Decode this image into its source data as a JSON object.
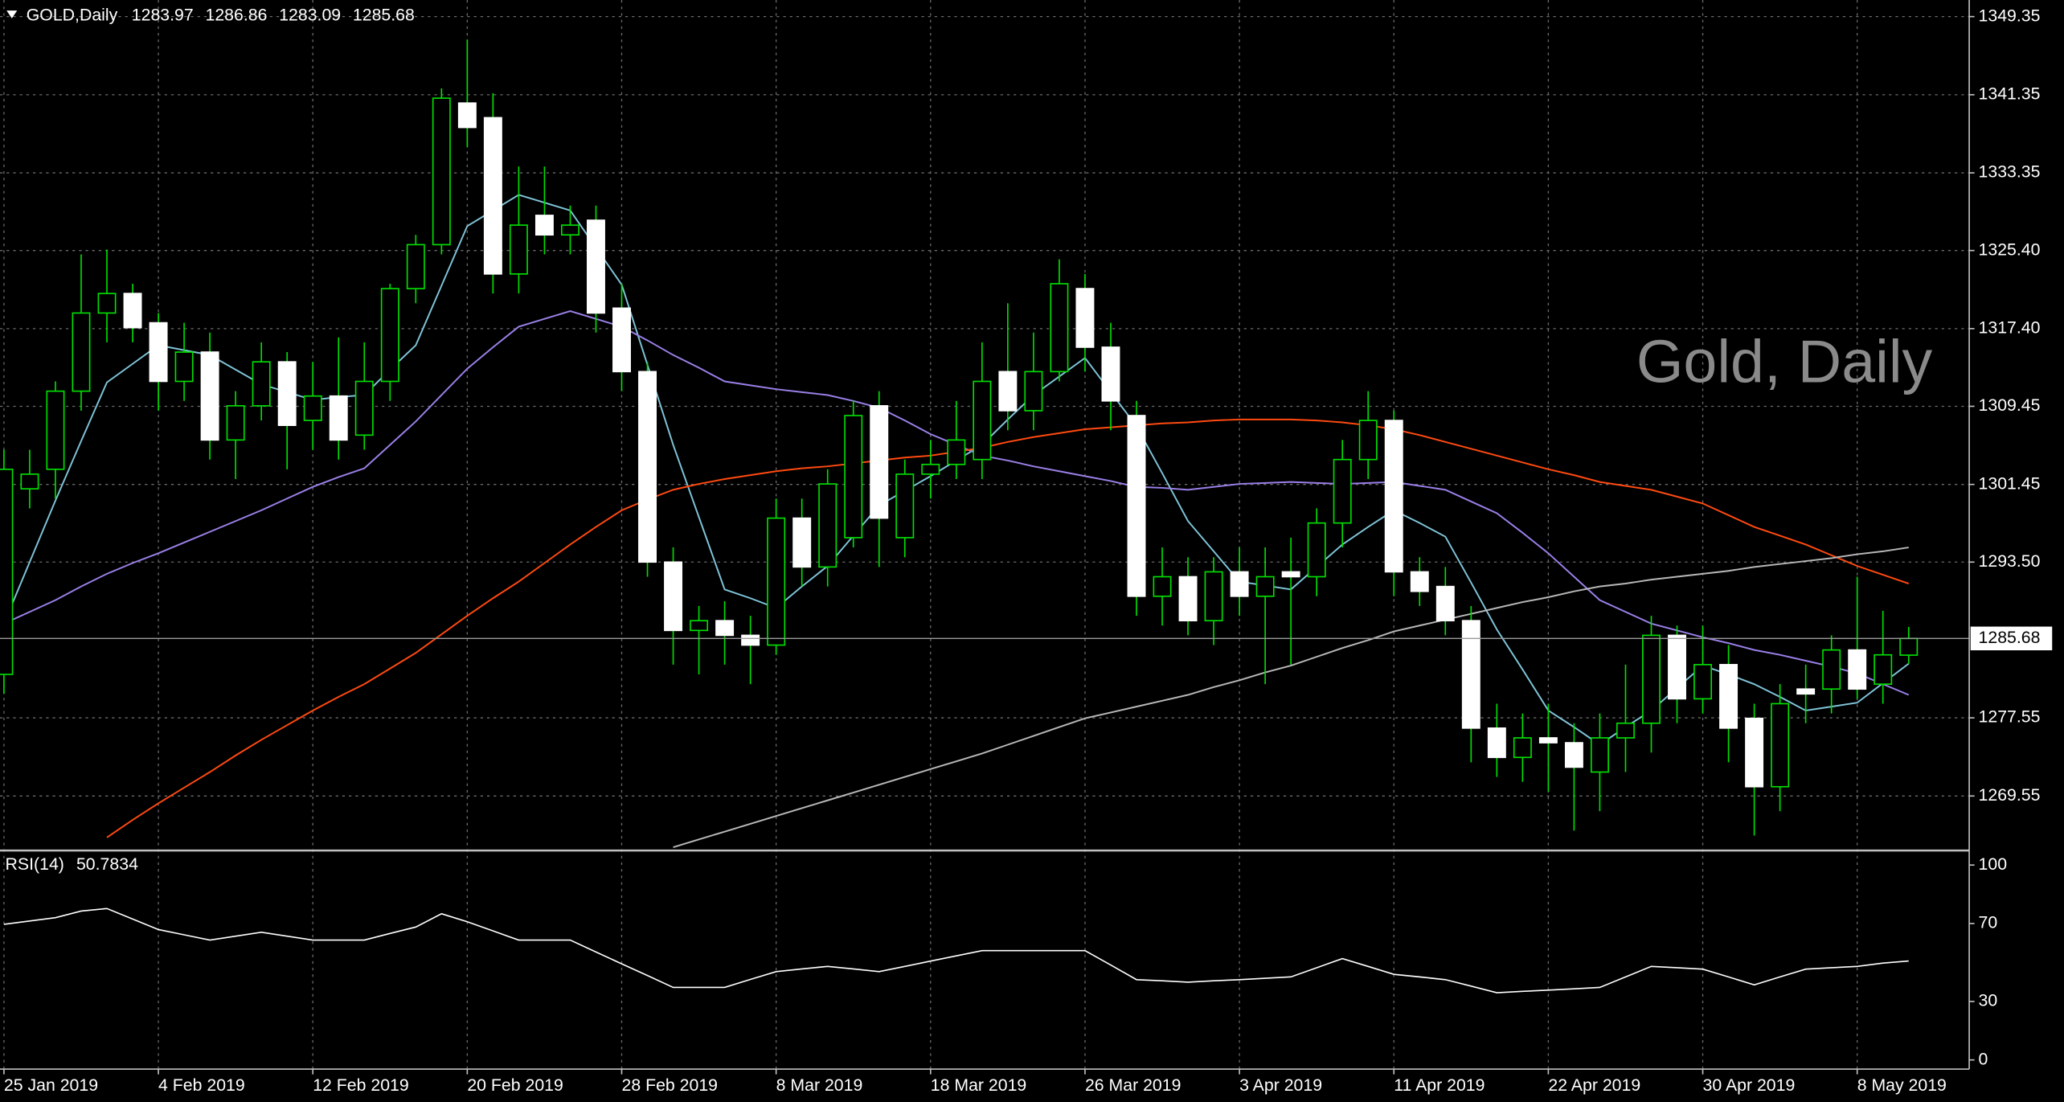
{
  "chart_data": [
    {
      "type": "candlestick",
      "title": "GOLD,Daily",
      "annotation": "Gold, Daily",
      "categories": [
        "25 Jan 2019",
        null,
        null,
        null,
        null,
        null,
        "4 Feb 2019",
        null,
        null,
        null,
        null,
        null,
        "12 Feb 2019",
        null,
        null,
        null,
        null,
        null,
        "20 Feb 2019",
        null,
        null,
        null,
        null,
        null,
        "28 Feb 2019",
        null,
        null,
        null,
        null,
        null,
        "8 Mar 2019",
        null,
        null,
        null,
        null,
        null,
        "18 Mar 2019",
        null,
        null,
        null,
        null,
        null,
        "26 Mar 2019",
        null,
        null,
        null,
        null,
        null,
        "3 Apr 2019",
        null,
        null,
        null,
        null,
        null,
        "11 Apr 2019",
        null,
        null,
        null,
        null,
        null,
        "22 Apr 2019",
        null,
        null,
        null,
        null,
        null,
        "30 Apr 2019",
        null,
        null,
        null,
        null,
        null,
        "8 May 2019",
        null,
        null
      ],
      "open": [
        1282,
        1301,
        1303,
        1311,
        1319,
        1321,
        1318,
        1312,
        1315,
        1306,
        1309.5,
        1314,
        1308,
        1310.5,
        1306.5,
        1312,
        1321.5,
        1326,
        1340.5,
        1339,
        1323,
        1329,
        1327,
        1328.5,
        1319.5,
        1313,
        1293.5,
        1286.5,
        1287.5,
        1286,
        1285,
        1298,
        1293,
        1296,
        1309.5,
        1296,
        1302.5,
        1303.5,
        1304,
        1313,
        1309,
        1313,
        1321.5,
        1315.5,
        1308.5,
        1290,
        1292,
        1287.5,
        1292.5,
        1290,
        1292.5,
        1292,
        1297.5,
        1304,
        1308,
        1292.5,
        1291,
        1287.5,
        1276.5,
        1273.5,
        1275.5,
        1275,
        1272,
        1275.5,
        1277,
        1286,
        1279.5,
        1283,
        1277.5,
        1270.5,
        1280.5,
        1280.5,
        1284.5,
        1281,
        1283.97
      ],
      "high": [
        1305,
        1305,
        1312,
        1325,
        1325.5,
        1322,
        1319,
        1318,
        1317,
        1311,
        1316,
        1315,
        1314,
        1316.5,
        1316,
        1322,
        1327,
        1342,
        1347,
        1341.5,
        1334,
        1334,
        1330,
        1330,
        1322,
        1314,
        1295,
        1289,
        1289.5,
        1288,
        1300,
        1300,
        1303,
        1310,
        1311,
        1304,
        1306,
        1310,
        1316,
        1320,
        1317,
        1324.5,
        1323,
        1318,
        1310,
        1295,
        1294,
        1294,
        1295,
        1295,
        1296,
        1299,
        1306,
        1311,
        1309,
        1294,
        1293,
        1289,
        1279,
        1278,
        1279,
        1277,
        1278,
        1283,
        1288,
        1287,
        1287,
        1285,
        1279,
        1281,
        1283,
        1286,
        1292,
        1288.5,
        1286.86
      ],
      "low": [
        1280,
        1299,
        1300,
        1309,
        1316,
        1316,
        1309,
        1310,
        1304,
        1302,
        1308,
        1303,
        1305,
        1304,
        1305,
        1310,
        1320,
        1325,
        1336,
        1321,
        1321,
        1325,
        1325,
        1317,
        1311,
        1292,
        1283,
        1282,
        1283,
        1281,
        1284,
        1291,
        1291,
        1295,
        1293,
        1294,
        1300,
        1302,
        1302,
        1307,
        1307,
        1312,
        1313,
        1307,
        1288,
        1287,
        1286,
        1285,
        1288,
        1281,
        1283,
        1290,
        1295,
        1302,
        1290,
        1289,
        1286,
        1273,
        1271.5,
        1271,
        1270,
        1266,
        1268,
        1272,
        1274,
        1277,
        1278,
        1273,
        1265.5,
        1268,
        1277,
        1278,
        1279.5,
        1279,
        1283.09
      ],
      "close": [
        1303,
        1302.5,
        1311,
        1319,
        1321,
        1317.5,
        1312,
        1315,
        1306,
        1309.5,
        1314,
        1307.5,
        1310.5,
        1306,
        1312,
        1321.5,
        1326,
        1341,
        1338,
        1323,
        1328,
        1327,
        1328,
        1319,
        1313,
        1293.5,
        1286.5,
        1287.5,
        1286,
        1285,
        1298,
        1293,
        1301.5,
        1308.5,
        1298,
        1302.5,
        1303.5,
        1306,
        1312,
        1309,
        1313,
        1322,
        1315.5,
        1310,
        1290,
        1292,
        1287.5,
        1292.5,
        1290,
        1292,
        1292,
        1297.5,
        1304,
        1308,
        1292.5,
        1290.5,
        1287.5,
        1276.5,
        1273.5,
        1275.5,
        1275,
        1272.5,
        1275.5,
        1277,
        1286,
        1279.5,
        1283,
        1276.5,
        1270.5,
        1279,
        1280,
        1284.5,
        1280.5,
        1284,
        1285.68
      ],
      "bull_color": "#00e000",
      "bear_color": "#ffffff",
      "overlays": [
        {
          "color": "#7fc4d8",
          "values": [
            1287.2,
            1293.5,
            1299.8,
            1305.9,
            1311.9,
            1313.8,
            1315.7,
            1315.2,
            1314.7,
            1313.2,
            1311.7,
            1310.9,
            1310.1,
            1310.4,
            1310.6,
            1313.2,
            1315.7,
            1321.8,
            1327.9,
            1329.5,
            1331.1,
            1330.3,
            1329.5,
            1325.7,
            1321.9,
            1313.7,
            1305.5,
            1298.1,
            1290.7,
            1289.8,
            1288.8,
            1291.0,
            1293.1,
            1296.2,
            1299.3,
            1300.8,
            1302.3,
            1303.9,
            1305.5,
            1308.1,
            1310.6,
            1312.5,
            1314.4,
            1310.9,
            1307.4,
            1302.6,
            1297.7,
            1294.6,
            1291.5,
            1291.1,
            1290.7,
            1293.0,
            1295.3,
            1297.1,
            1298.8,
            1297.5,
            1296.1,
            1291.4,
            1286.6,
            1282.5,
            1278.3,
            1276.6,
            1274.8,
            1276.6,
            1278.3,
            1280.6,
            1282.9,
            1282.0,
            1281.0,
            1279.7,
            1278.3,
            1278.7,
            1279.1,
            1281.1,
            1283.1
          ]
        },
        {
          "color": "#9a80e8",
          "values": [
            1287.2,
            1288.4,
            1289.6,
            1291.0,
            1292.3,
            1293.4,
            1294.4,
            1295.5,
            1296.6,
            1297.7,
            1298.8,
            1300.0,
            1301.2,
            1302.2,
            1303.1,
            1305.5,
            1307.9,
            1310.6,
            1313.3,
            1315.5,
            1317.6,
            1318.4,
            1319.2,
            1318.4,
            1317.6,
            1316.2,
            1314.7,
            1313.4,
            1312.0,
            1311.6,
            1311.2,
            1310.9,
            1310.6,
            1310.0,
            1309.3,
            1308.0,
            1306.6,
            1305.5,
            1304.4,
            1303.9,
            1303.3,
            1302.8,
            1302.3,
            1301.8,
            1301.2,
            1301.1,
            1300.9,
            1301.2,
            1301.5,
            1301.6,
            1301.7,
            1301.6,
            1301.5,
            1301.6,
            1301.7,
            1301.3,
            1300.9,
            1299.7,
            1298.5,
            1296.5,
            1294.4,
            1292.0,
            1289.6,
            1288.4,
            1287.2,
            1286.5,
            1285.8,
            1285.2,
            1284.5,
            1284.0,
            1283.4,
            1282.8,
            1282.1,
            1281.0,
            1279.9
          ]
        },
        {
          "color": "#ff4a10",
          "values": [
            null,
            null,
            null,
            null,
            1265.3,
            1267.1,
            1268.8,
            1270.4,
            1272.0,
            1273.7,
            1275.3,
            1276.8,
            1278.3,
            1279.7,
            1281.0,
            1282.6,
            1284.2,
            1286.1,
            1288.0,
            1289.8,
            1291.5,
            1293.4,
            1295.3,
            1297.1,
            1298.8,
            1299.9,
            1300.9,
            1301.5,
            1302.0,
            1302.4,
            1302.8,
            1303.1,
            1303.3,
            1303.6,
            1303.9,
            1304.2,
            1304.4,
            1304.8,
            1305.2,
            1305.8,
            1306.3,
            1306.7,
            1307.1,
            1307.3,
            1307.5,
            1307.7,
            1307.8,
            1308.0,
            1308.1,
            1308.1,
            1308.1,
            1308.0,
            1307.8,
            1307.5,
            1307.1,
            1306.5,
            1305.8,
            1305.1,
            1304.4,
            1303.7,
            1303.0,
            1302.4,
            1301.7,
            1301.3,
            1300.9,
            1300.2,
            1299.5,
            1298.3,
            1297.1,
            1296.2,
            1295.3,
            1294.2,
            1293.1,
            1292.2,
            1291.3
          ]
        },
        {
          "color": "#b8b8b8",
          "values": [
            null,
            null,
            null,
            null,
            null,
            null,
            null,
            null,
            null,
            null,
            null,
            null,
            null,
            null,
            null,
            null,
            null,
            null,
            null,
            null,
            null,
            null,
            null,
            null,
            null,
            null,
            1264.3,
            1265.1,
            1265.9,
            1266.7,
            1267.5,
            1268.3,
            1269.1,
            1269.9,
            1270.7,
            1271.5,
            1272.3,
            1273.1,
            1273.9,
            1274.8,
            1275.7,
            1276.6,
            1277.5,
            1278.1,
            1278.7,
            1279.3,
            1279.9,
            1280.7,
            1281.4,
            1282.2,
            1282.9,
            1283.8,
            1284.7,
            1285.5,
            1286.4,
            1287.0,
            1287.6,
            1288.2,
            1288.8,
            1289.4,
            1289.9,
            1290.5,
            1291.0,
            1291.3,
            1291.7,
            1292.0,
            1292.3,
            1292.6,
            1293.0,
            1293.3,
            1293.6,
            1293.9,
            1294.3,
            1294.6,
            1295.0
          ]
        }
      ],
      "ylim": [
        1264.1,
        1351.05
      ],
      "yticks": [
        1349.35,
        1341.35,
        1333.35,
        {
          "value": 1325.4,
          "label": "1325.40"
        },
        {
          "value": 1317.4,
          "label": "1317.40"
        },
        1309.45,
        1301.45,
        {
          "value": 1293.5,
          "label": "1293.50"
        },
        1277.55,
        1269.55
      ],
      "grid": true
    },
    {
      "type": "line",
      "title": "RSI(14)",
      "color": "#ffffff",
      "values": [
        69.6,
        71.3,
        73.0,
        76.4,
        77.7,
        72.3,
        66.9,
        64.2,
        61.5,
        63.5,
        65.5,
        63.5,
        61.5,
        61.5,
        61.5,
        64.9,
        68.2,
        75.0,
        70.9,
        66.2,
        61.5,
        61.5,
        61.5,
        55.4,
        49.3,
        43.3,
        37.2,
        37.2,
        37.2,
        41.3,
        45.3,
        46.7,
        48.0,
        46.7,
        45.3,
        48.0,
        50.7,
        53.4,
        56.1,
        56.1,
        56.1,
        56.1,
        56.1,
        48.7,
        41.2,
        40.6,
        39.9,
        40.6,
        41.2,
        41.9,
        42.6,
        47.3,
        52.0,
        48.0,
        43.9,
        42.6,
        41.2,
        37.9,
        34.5,
        35.2,
        35.8,
        36.5,
        37.2,
        42.6,
        48.0,
        47.3,
        46.6,
        42.6,
        38.5,
        42.6,
        46.6,
        47.3,
        48.0,
        49.7,
        50.7834
      ],
      "ylim": [
        -4.7,
        106.1
      ],
      "yticks": [
        100,
        70,
        30,
        0
      ]
    }
  ]
}
